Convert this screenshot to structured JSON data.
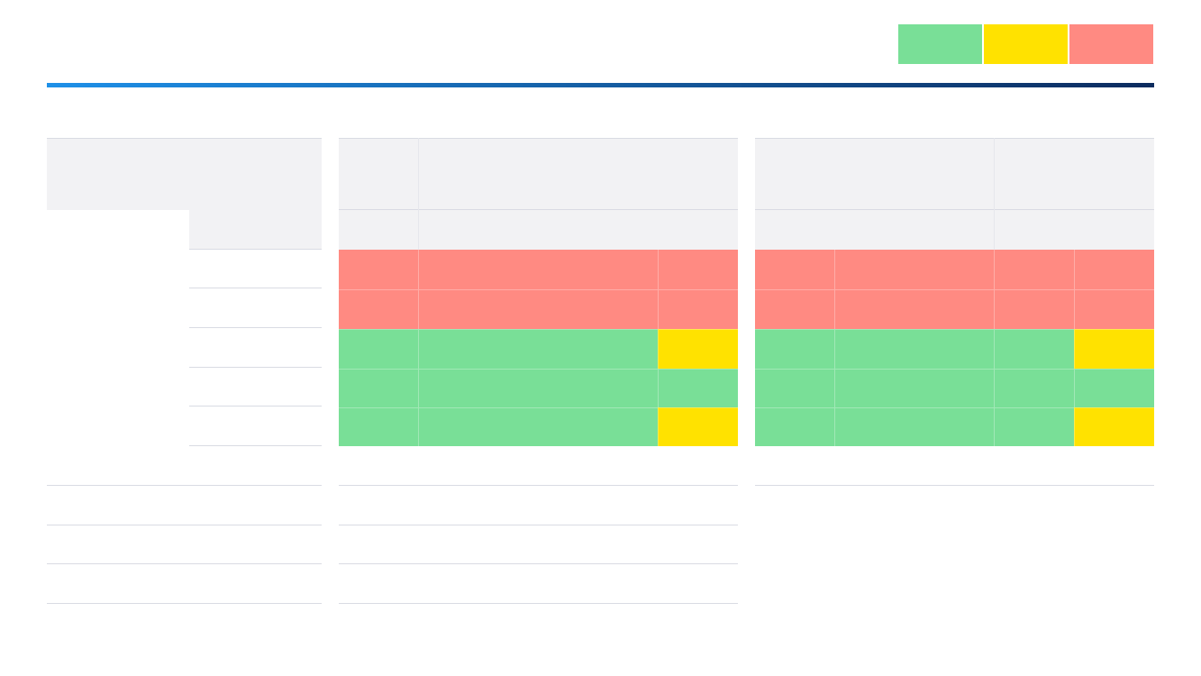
{
  "colors": {
    "green": "#79df97",
    "yellow": "#ffe200",
    "red": "#ff8a82",
    "header_bg": "#f2f2f4",
    "rule": "#d9dbe3",
    "bar_start": "#1e90e8",
    "bar_end": "#0c2b5e"
  },
  "legend": [
    {
      "status": "green"
    },
    {
      "status": "yellow"
    },
    {
      "status": "red"
    }
  ],
  "middle_table": {
    "rows": [
      [
        "red",
        "red",
        "red"
      ],
      [
        "red",
        "red",
        "red"
      ],
      [
        "green",
        "green",
        "yellow"
      ],
      [
        "green",
        "green",
        "green"
      ],
      [
        "green",
        "green",
        "yellow"
      ]
    ]
  },
  "right_table": {
    "rows": [
      [
        "red",
        "red",
        "red",
        "red"
      ],
      [
        "red",
        "red",
        "red",
        "red"
      ],
      [
        "green",
        "green",
        "green",
        "yellow"
      ],
      [
        "green",
        "green",
        "green",
        "green"
      ],
      [
        "green",
        "green",
        "green",
        "yellow"
      ]
    ]
  }
}
